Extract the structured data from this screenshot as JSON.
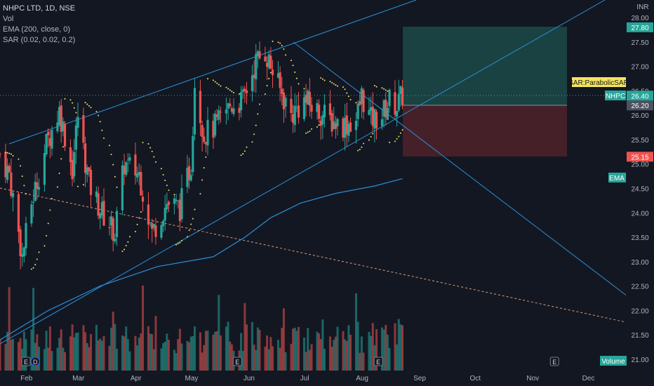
{
  "legend": {
    "symbol": "NHPC LTD, 1D, NSE",
    "vol": "Vol",
    "ema": "EMA (200, close, 0)",
    "sar": "SAR (0.02, 0.02, 0.2)"
  },
  "labels": {
    "currency": "INR",
    "sar_tag": "SAR:ParabolicSAR",
    "symbol_tag": "NHPC",
    "ema_tag": "EMA",
    "volume_tag": "Volume",
    "event_e": "E",
    "event_d": "D"
  },
  "colors": {
    "background": "#131722",
    "up": "#26a69a",
    "down": "#ef5350",
    "trendline": "#2a8fd6",
    "ema": "#2a8fd6",
    "sar": "#f5e45c",
    "target_zone": "#1c4a48",
    "stop_zone": "#4b2129",
    "dashed": "#d8a07a"
  },
  "chart_data": {
    "type": "candlestick",
    "title": "NHPC LTD, 1D, NSE",
    "y_axis": {
      "ticks": [
        "28.00",
        "27.50",
        "27.00",
        "26.50",
        "26.00",
        "25.50",
        "25.00",
        "24.50",
        "24.00",
        "23.50",
        "23.00",
        "22.50",
        "22.00",
        "21.50",
        "21.00"
      ],
      "ylim": [
        20.8,
        28.15
      ],
      "currency": "INR"
    },
    "x_axis": {
      "ticks": [
        "Feb",
        "Mar",
        "Apr",
        "May",
        "Jun",
        "Jul",
        "Aug",
        "Sep",
        "Oct",
        "Nov",
        "Dec"
      ]
    },
    "price_tags": [
      {
        "label": "",
        "value": "27.80",
        "color": "#26a69a"
      },
      {
        "label": "NHPC",
        "value": "26.40",
        "color": "#26a69a"
      },
      {
        "label": "",
        "value": "26.20",
        "color": "#4d5260"
      },
      {
        "label": "",
        "value": "25.15",
        "color": "#ef5350"
      }
    ],
    "series_keyframes": [
      {
        "x": "2023-01-20",
        "close": 25.2
      },
      {
        "x": "2023-01-25",
        "close": 24.8
      },
      {
        "x": "2023-02-01",
        "close": 23.1
      },
      {
        "x": "2023-02-06",
        "close": 24.2
      },
      {
        "x": "2023-02-14",
        "close": 25.4
      },
      {
        "x": "2023-02-21",
        "close": 26.1
      },
      {
        "x": "2023-02-28",
        "close": 24.9
      },
      {
        "x": "2023-03-03",
        "close": 26.0
      },
      {
        "x": "2023-03-09",
        "close": 24.6
      },
      {
        "x": "2023-03-16",
        "close": 24.0
      },
      {
        "x": "2023-03-23",
        "close": 23.6
      },
      {
        "x": "2023-03-28",
        "close": 25.0
      },
      {
        "x": "2023-04-05",
        "close": 24.8
      },
      {
        "x": "2023-04-12",
        "close": 23.6
      },
      {
        "x": "2023-04-20",
        "close": 24.2
      },
      {
        "x": "2023-04-27",
        "close": 24.1
      },
      {
        "x": "2023-05-03",
        "close": 25.0
      },
      {
        "x": "2023-05-05",
        "close": 26.7
      },
      {
        "x": "2023-05-10",
        "close": 25.6
      },
      {
        "x": "2023-05-17",
        "close": 25.8
      },
      {
        "x": "2023-05-24",
        "close": 26.2
      },
      {
        "x": "2023-05-31",
        "close": 26.3
      },
      {
        "x": "2023-06-07",
        "close": 27.1
      },
      {
        "x": "2023-06-12",
        "close": 27.3
      },
      {
        "x": "2023-06-19",
        "close": 26.6
      },
      {
        "x": "2023-06-26",
        "close": 26.0
      },
      {
        "x": "2023-07-03",
        "close": 26.3
      },
      {
        "x": "2023-07-10",
        "close": 26.1
      },
      {
        "x": "2023-07-17",
        "close": 25.9
      },
      {
        "x": "2023-07-24",
        "close": 25.8
      },
      {
        "x": "2023-07-31",
        "close": 25.9
      },
      {
        "x": "2023-08-03",
        "close": 26.4
      },
      {
        "x": "2023-08-08",
        "close": 25.9
      },
      {
        "x": "2023-08-14",
        "close": 26.0
      },
      {
        "x": "2023-08-18",
        "close": 26.3
      },
      {
        "x": "2023-08-22",
        "close": 26.2
      },
      {
        "x": "2023-08-25",
        "close": 26.4
      }
    ],
    "ema_200": [
      {
        "x": "2023-01-20",
        "y": 21.4
      },
      {
        "x": "2023-02-15",
        "y": 22.0
      },
      {
        "x": "2023-03-15",
        "y": 22.5
      },
      {
        "x": "2023-04-15",
        "y": 22.9
      },
      {
        "x": "2023-05-15",
        "y": 23.1
      },
      {
        "x": "2023-06-01",
        "y": 23.5
      },
      {
        "x": "2023-06-15",
        "y": 23.9
      },
      {
        "x": "2023-07-01",
        "y": 24.2
      },
      {
        "x": "2023-07-20",
        "y": 24.4
      },
      {
        "x": "2023-08-10",
        "y": 24.55
      },
      {
        "x": "2023-08-25",
        "y": 24.7
      }
    ],
    "events": [
      {
        "label": "E",
        "x": "2023-02-03"
      },
      {
        "label": "D",
        "x": "2023-02-08"
      },
      {
        "label": "E",
        "x": "2023-05-28"
      },
      {
        "label": "E",
        "x": "2023-08-12"
      },
      {
        "label": "E",
        "x": "2023-11-15"
      }
    ]
  }
}
